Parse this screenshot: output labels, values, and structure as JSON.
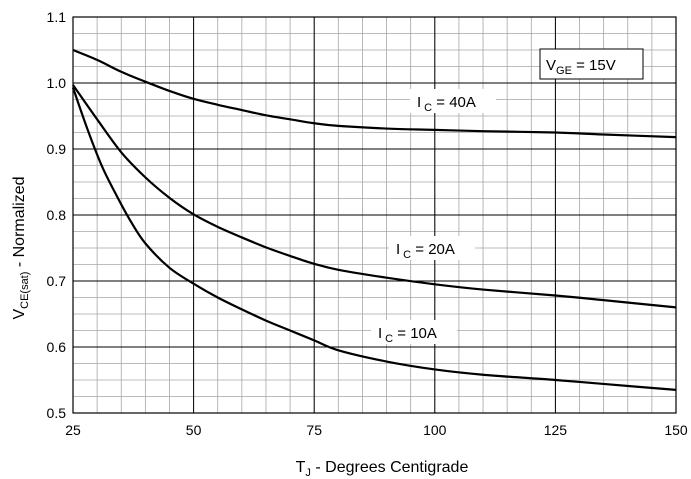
{
  "chart_data": {
    "type": "line",
    "xlabel": {
      "main": "T",
      "sub": "J",
      "rest": " - Degrees Centigrade"
    },
    "ylabel": {
      "main": "V",
      "sub": "CE(sat)",
      "rest": " - Normalized"
    },
    "xlim": [
      25,
      150
    ],
    "ylim": [
      0.5,
      1.1
    ],
    "x_ticks": [
      25,
      50,
      75,
      100,
      125,
      150
    ],
    "x_tick_labels": [
      "25",
      "50",
      "75",
      "100",
      "125",
      "150"
    ],
    "y_ticks": [
      0.5,
      0.6,
      0.7,
      0.8,
      0.9,
      1.0,
      1.1
    ],
    "y_tick_labels": [
      "0.5",
      "0.6",
      "0.7",
      "0.8",
      "0.9",
      "1.0",
      "1.1"
    ],
    "grid": true,
    "condition_box": {
      "main": "V",
      "sub": "GE",
      "rest": " = 15V"
    },
    "series": [
      {
        "label_main": "I",
        "label_sub": "C",
        "label_rest": " = 40A",
        "x": [
          25,
          30,
          35,
          40,
          45,
          50,
          55,
          60,
          65,
          70,
          75,
          80,
          90,
          100,
          110,
          125,
          135,
          150
        ],
        "y": [
          1.05,
          1.035,
          1.017,
          1.002,
          0.988,
          0.976,
          0.967,
          0.959,
          0.951,
          0.945,
          0.939,
          0.935,
          0.931,
          0.929,
          0.927,
          0.925,
          0.922,
          0.918
        ]
      },
      {
        "label_main": "I",
        "label_sub": "C",
        "label_rest": " = 20A",
        "x": [
          25,
          30,
          35,
          40,
          45,
          50,
          55,
          60,
          65,
          70,
          75,
          80,
          90,
          100,
          110,
          125,
          135,
          150
        ],
        "y": [
          0.997,
          0.945,
          0.895,
          0.857,
          0.826,
          0.801,
          0.782,
          0.766,
          0.751,
          0.738,
          0.726,
          0.717,
          0.705,
          0.695,
          0.687,
          0.678,
          0.671,
          0.66
        ]
      },
      {
        "label_main": "I",
        "label_sub": "C",
        "label_rest": " = 10A",
        "x": [
          25,
          28,
          31,
          34,
          37,
          40,
          45,
          50,
          55,
          60,
          65,
          70,
          75,
          80,
          90,
          100,
          110,
          125,
          135,
          150
        ],
        "y": [
          0.993,
          0.93,
          0.874,
          0.83,
          0.79,
          0.757,
          0.72,
          0.696,
          0.675,
          0.657,
          0.64,
          0.625,
          0.61,
          0.595,
          0.578,
          0.566,
          0.558,
          0.55,
          0.544,
          0.535
        ]
      }
    ]
  }
}
